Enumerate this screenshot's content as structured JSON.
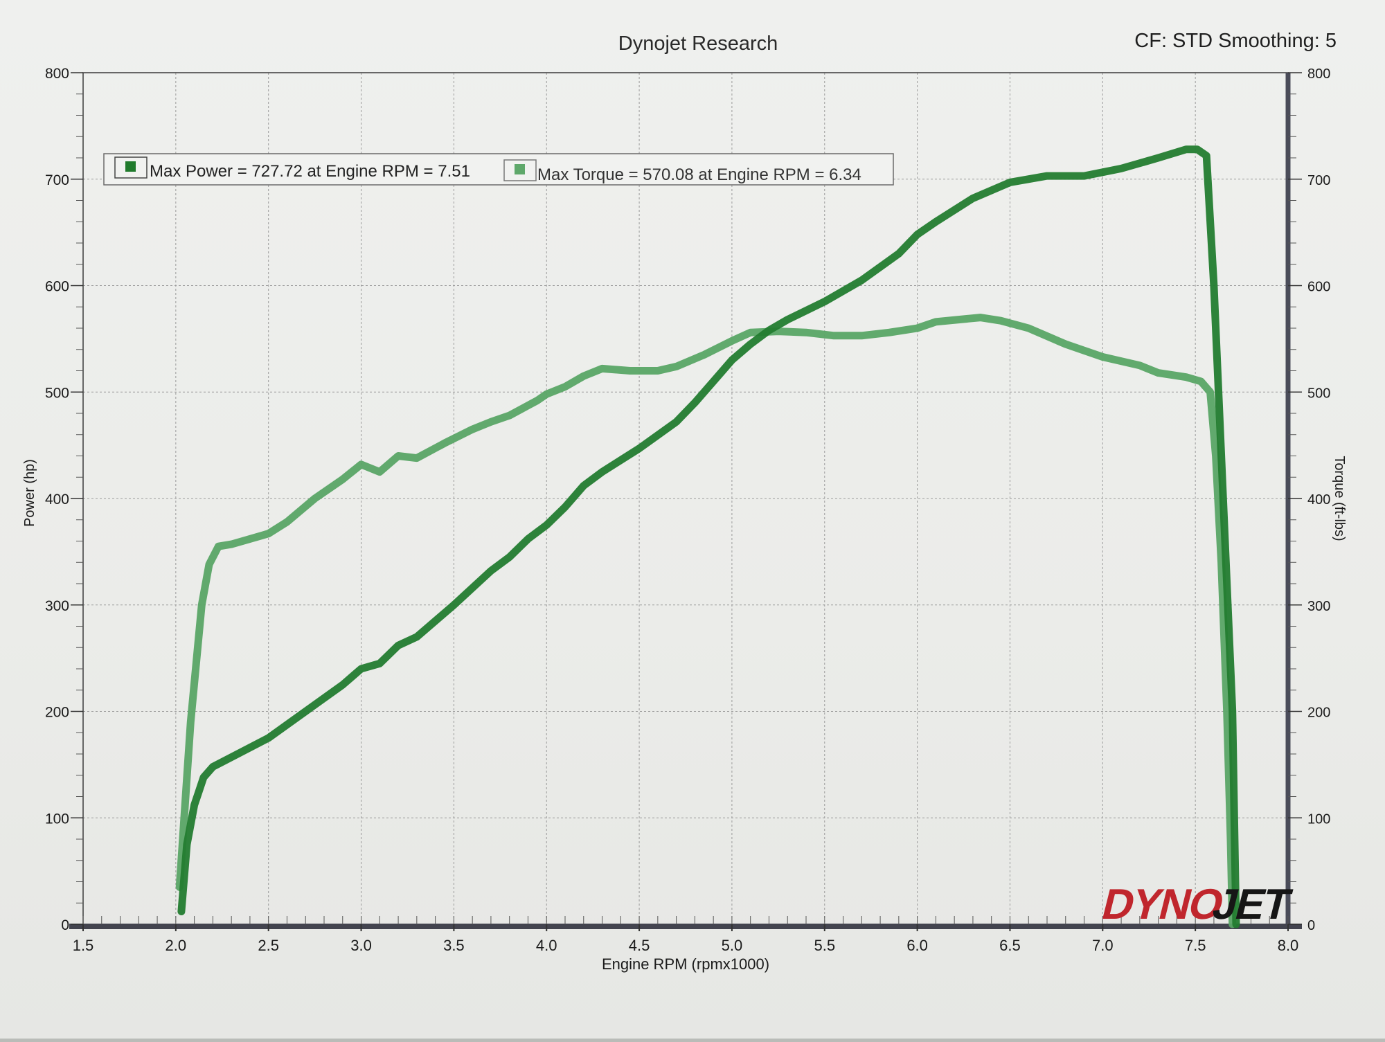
{
  "chart_data": {
    "type": "line",
    "title": "Dynojet Research",
    "settings_text": "CF: STD Smoothing: 5",
    "xlabel": "Engine RPM (rpmx1000)",
    "ylabel_left": "Power (hp)",
    "ylabel_right": "Torque (ft-lbs)",
    "xlim": [
      1.5,
      8.0
    ],
    "ylim_left": [
      0,
      800
    ],
    "ylim_right": [
      0,
      800
    ],
    "grid": true,
    "legend_position": "top-left",
    "x_ticks": [
      "1.5",
      "2.0",
      "2.5",
      "3.0",
      "3.5",
      "4.0",
      "4.5",
      "5.0",
      "5.5",
      "6.0",
      "6.5",
      "7.0",
      "7.5",
      "8.0"
    ],
    "y_ticks_left": [
      "0",
      "100",
      "200",
      "300",
      "400",
      "500",
      "600",
      "700",
      "800"
    ],
    "y_ticks_right": [
      "0",
      "100",
      "200",
      "300",
      "400",
      "500",
      "600",
      "700",
      "800"
    ],
    "legend": [
      {
        "text": "Max Power = 727.72 at Engine RPM = 7.51",
        "color": "#1f7a2c"
      },
      {
        "text": "Max Torque = 570.08 at Engine RPM = 6.34",
        "color": "#5ea86a"
      }
    ],
    "series": [
      {
        "name": "Power",
        "axis": "left",
        "color": "#237c30",
        "points": [
          [
            2.03,
            12
          ],
          [
            2.06,
            75
          ],
          [
            2.1,
            112
          ],
          [
            2.15,
            138
          ],
          [
            2.2,
            148
          ],
          [
            2.3,
            157
          ],
          [
            2.5,
            175
          ],
          [
            2.7,
            200
          ],
          [
            2.9,
            225
          ],
          [
            3.0,
            240
          ],
          [
            3.1,
            245
          ],
          [
            3.2,
            262
          ],
          [
            3.3,
            270
          ],
          [
            3.5,
            300
          ],
          [
            3.7,
            332
          ],
          [
            3.8,
            345
          ],
          [
            3.9,
            362
          ],
          [
            4.0,
            375
          ],
          [
            4.1,
            392
          ],
          [
            4.2,
            412
          ],
          [
            4.3,
            425
          ],
          [
            4.5,
            447
          ],
          [
            4.7,
            472
          ],
          [
            4.8,
            490
          ],
          [
            4.9,
            510
          ],
          [
            5.0,
            530
          ],
          [
            5.1,
            545
          ],
          [
            5.2,
            558
          ],
          [
            5.3,
            568
          ],
          [
            5.5,
            585
          ],
          [
            5.7,
            605
          ],
          [
            5.9,
            630
          ],
          [
            6.0,
            648
          ],
          [
            6.1,
            660
          ],
          [
            6.3,
            682
          ],
          [
            6.5,
            697
          ],
          [
            6.7,
            703
          ],
          [
            6.9,
            703
          ],
          [
            7.1,
            710
          ],
          [
            7.3,
            720
          ],
          [
            7.45,
            728
          ],
          [
            7.51,
            728
          ],
          [
            7.56,
            722
          ],
          [
            7.6,
            600
          ],
          [
            7.65,
            400
          ],
          [
            7.7,
            200
          ],
          [
            7.72,
            0
          ]
        ]
      },
      {
        "name": "Torque",
        "axis": "right",
        "color": "#5aa566",
        "points": [
          [
            2.02,
            35
          ],
          [
            2.08,
            190
          ],
          [
            2.14,
            300
          ],
          [
            2.18,
            338
          ],
          [
            2.23,
            355
          ],
          [
            2.3,
            357
          ],
          [
            2.5,
            367
          ],
          [
            2.6,
            378
          ],
          [
            2.75,
            400
          ],
          [
            2.9,
            418
          ],
          [
            3.0,
            432
          ],
          [
            3.1,
            425
          ],
          [
            3.2,
            440
          ],
          [
            3.3,
            438
          ],
          [
            3.45,
            452
          ],
          [
            3.6,
            465
          ],
          [
            3.7,
            472
          ],
          [
            3.8,
            478
          ],
          [
            3.95,
            492
          ],
          [
            4.0,
            498
          ],
          [
            4.1,
            505
          ],
          [
            4.2,
            515
          ],
          [
            4.3,
            522
          ],
          [
            4.45,
            520
          ],
          [
            4.6,
            520
          ],
          [
            4.7,
            524
          ],
          [
            4.85,
            535
          ],
          [
            5.0,
            548
          ],
          [
            5.1,
            556
          ],
          [
            5.25,
            557
          ],
          [
            5.4,
            556
          ],
          [
            5.55,
            553
          ],
          [
            5.7,
            553
          ],
          [
            5.85,
            556
          ],
          [
            6.0,
            560
          ],
          [
            6.1,
            566
          ],
          [
            6.34,
            570
          ],
          [
            6.45,
            567
          ],
          [
            6.6,
            560
          ],
          [
            6.8,
            545
          ],
          [
            7.0,
            533
          ],
          [
            7.2,
            525
          ],
          [
            7.3,
            518
          ],
          [
            7.45,
            514
          ],
          [
            7.53,
            510
          ],
          [
            7.58,
            500
          ],
          [
            7.61,
            440
          ],
          [
            7.64,
            340
          ],
          [
            7.67,
            200
          ],
          [
            7.69,
            80
          ],
          [
            7.7,
            0
          ]
        ]
      }
    ]
  }
}
